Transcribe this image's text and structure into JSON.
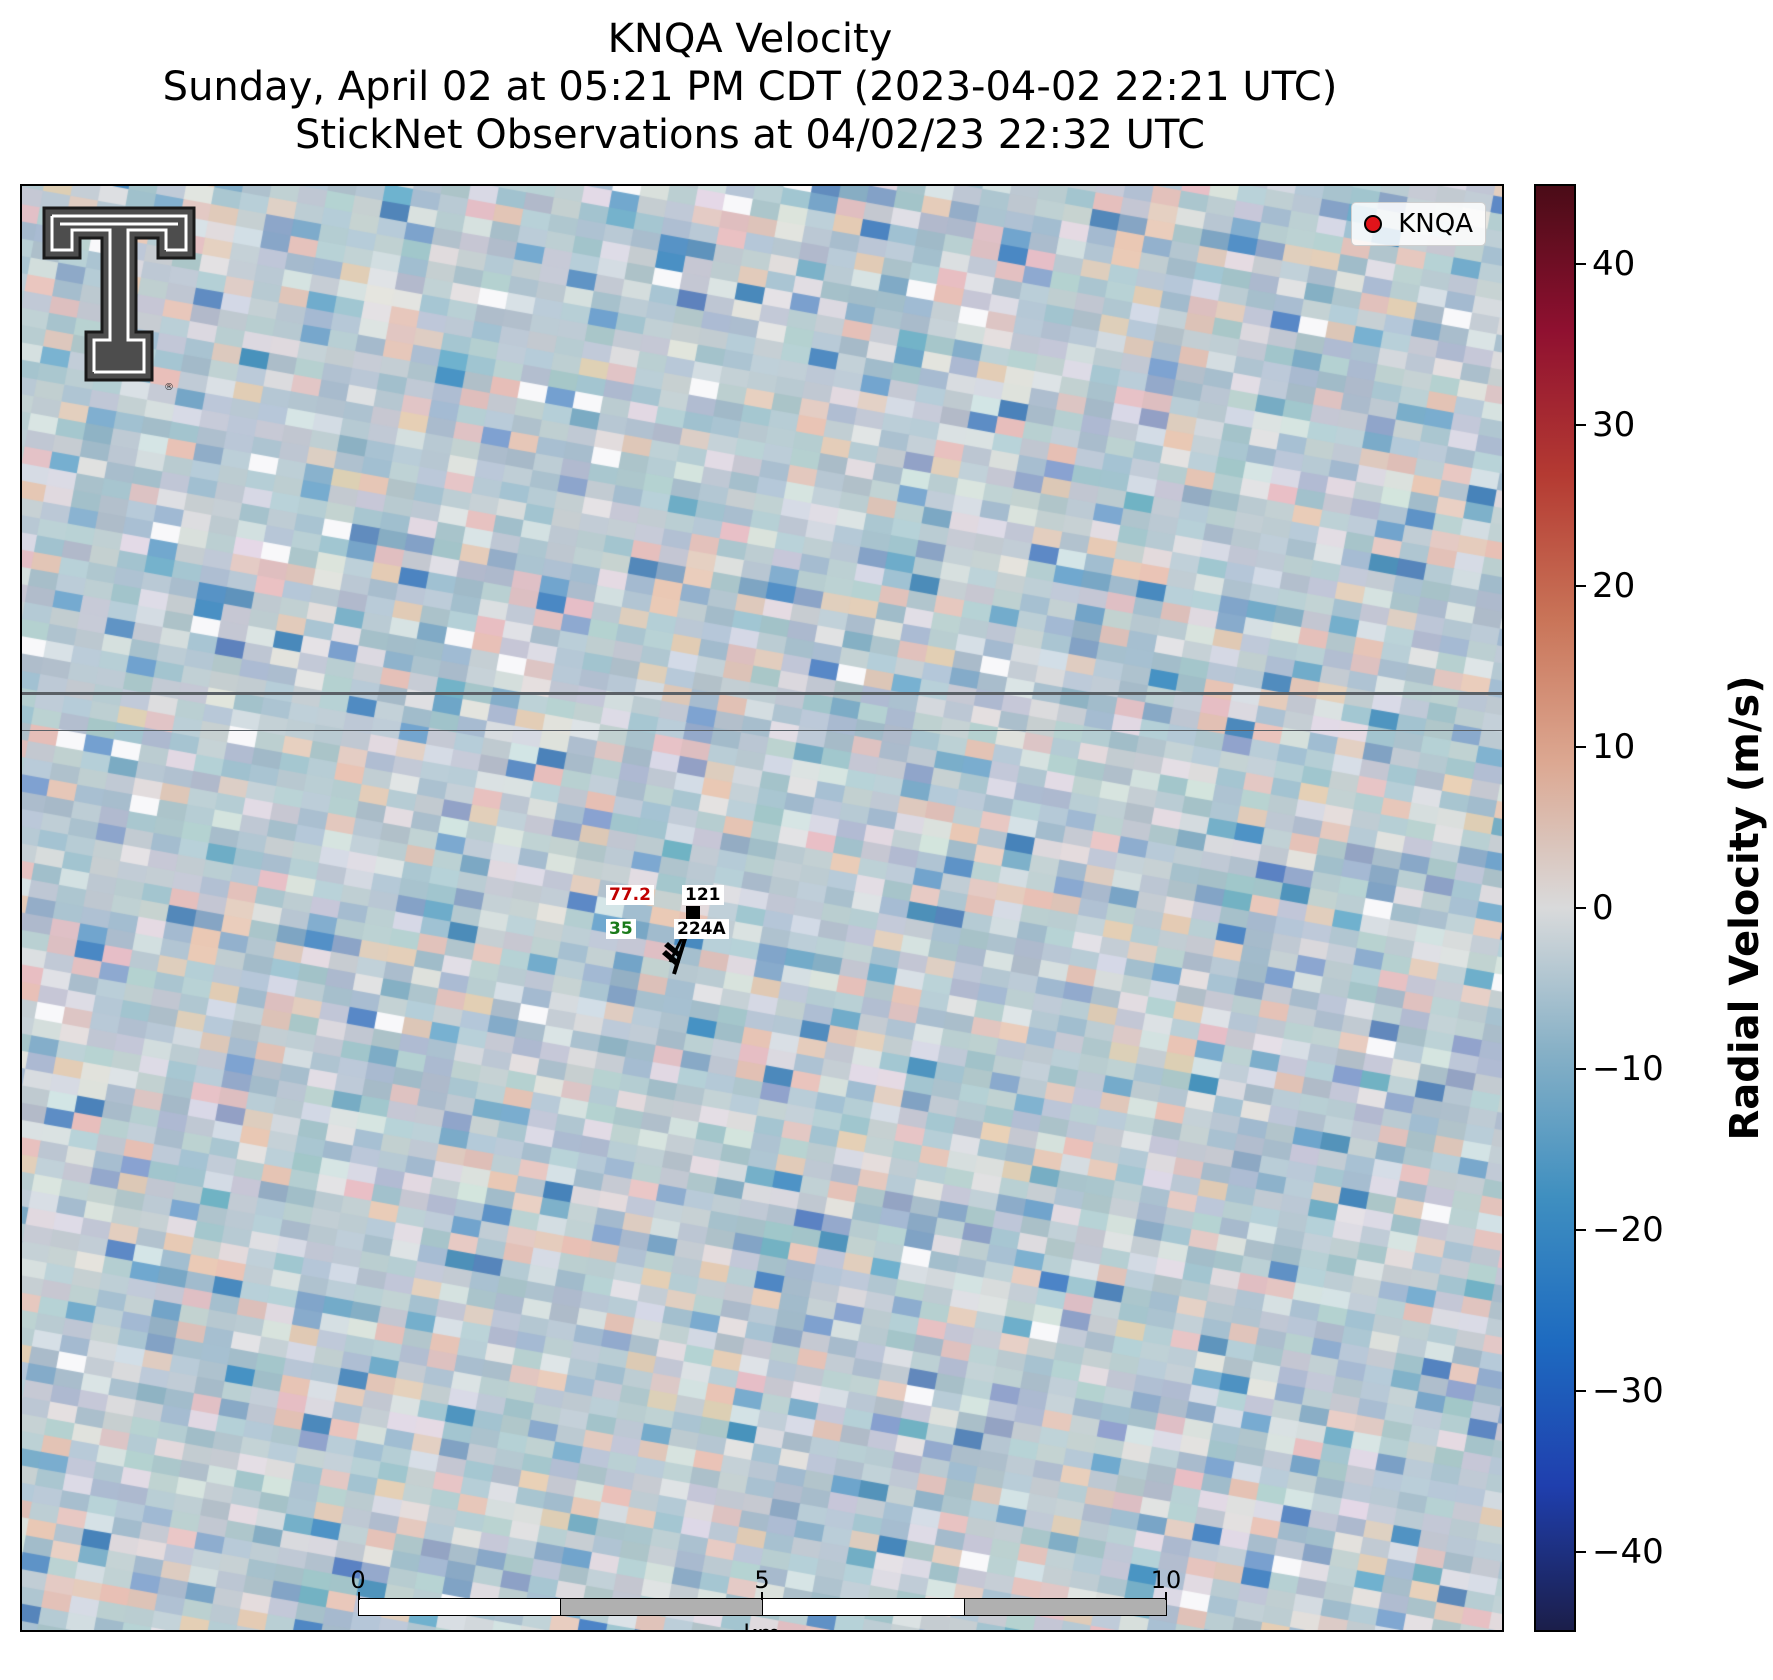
{
  "title": {
    "line1": "KNQA Velocity",
    "line2": "Sunday, April 02 at 05:21 PM CDT (2023-04-02 22:21 UTC)",
    "line3": "StickNet Observations at 04/02/23 22:32 UTC"
  },
  "legend": {
    "label": "KNQA",
    "marker_color": "#e0141a"
  },
  "station": {
    "temperature": "77.2",
    "temperature_color": "#c00000",
    "pressure": "121",
    "dewpoint": "35",
    "dewpoint_color": "#1a7a1a",
    "id": "224A"
  },
  "scalebar": {
    "ticks": [
      "0",
      "5",
      "10"
    ],
    "unit": "km",
    "length_km": 10
  },
  "colorbar": {
    "label": "Radial Velocity (m/s)",
    "min": -45,
    "max": 45,
    "ticks": [
      40,
      30,
      20,
      10,
      0,
      -10,
      -20,
      -30,
      -40
    ],
    "tick_labels": [
      "40",
      "30",
      "20",
      "10",
      "0",
      "−10",
      "−20",
      "−30",
      "−40"
    ],
    "colors": [
      "#1b1e4a",
      "#1f3fae",
      "#1e6bc0",
      "#3f8fc0",
      "#86b0c6",
      "#d9dadb",
      "#dca892",
      "#c97458",
      "#b43a32",
      "#8f1030",
      "#4a0c17"
    ]
  },
  "logo": {
    "name": "texas-tech-double-t-logo"
  }
}
